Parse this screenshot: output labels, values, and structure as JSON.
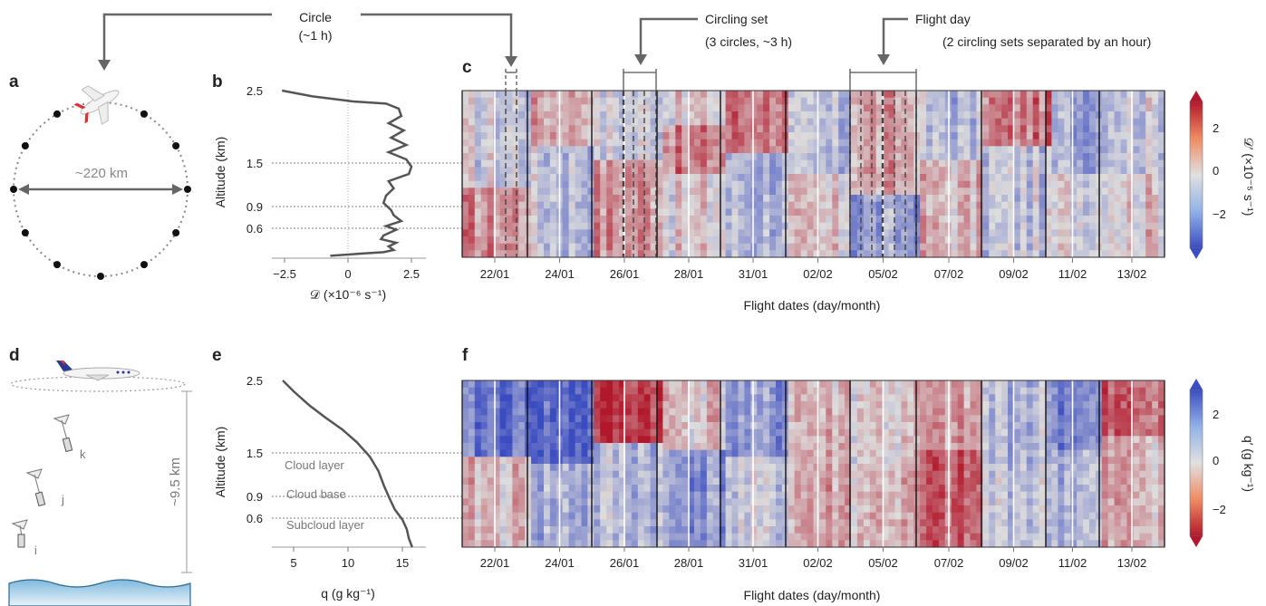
{
  "panels": {
    "a": {
      "letter": "a",
      "diameter_label": "~220 km"
    },
    "b": {
      "letter": "b"
    },
    "c": {
      "letter": "c"
    },
    "d": {
      "letter": "d",
      "height_label": "~9.5 km",
      "sondes": [
        "k",
        "j",
        "i"
      ]
    },
    "e": {
      "letter": "e",
      "layers": [
        "Cloud layer",
        "Cloud base",
        "Subcloud layer"
      ]
    },
    "f": {
      "letter": "f"
    }
  },
  "annotations": {
    "circle": "Circle",
    "circle_dur": "(~1 h)",
    "circling_set": "Circling set",
    "circling_set_dur": "(3 circles, ~3 h)",
    "flight_day": "Flight day",
    "flight_day_dur": "(2 circling sets separated by an hour)"
  },
  "axes": {
    "altitude_label": "Altitude (km)",
    "altitude_ticks": [
      "2.5",
      "1.5",
      "0.9",
      "0.6"
    ],
    "flight_dates_label": "Flight dates (day/month)",
    "dates": [
      "22/01",
      "24/01",
      "26/01",
      "28/01",
      "31/01",
      "02/02",
      "05/02",
      "07/02",
      "09/02",
      "11/02",
      "13/02"
    ],
    "b_xlabel": "𝒟 (×10⁻⁶ s⁻¹)",
    "b_xticks": [
      "−2.5",
      "0",
      "2.5"
    ],
    "e_xlabel": "q (g kg⁻¹)",
    "e_xticks": [
      "5",
      "10",
      "15"
    ],
    "cbar_top_label": "𝒟′ (×10⁻⁵ s⁻¹)",
    "cbar_top_ticks": [
      "2",
      "0",
      "−2"
    ],
    "cbar_bottom_label": "q′ (g kg⁻¹)",
    "cbar_bottom_ticks": [
      "2",
      "0",
      "−2"
    ]
  },
  "colors": {
    "positive_top": "#c0232a",
    "negative_top": "#3b5fcf",
    "neutral": "#dcdcdc",
    "line": "#555555"
  },
  "chart_data": [
    {
      "type": "line",
      "panel": "b",
      "xlabel": "𝒟 (×10⁻⁶ s⁻¹)",
      "ylabel": "Altitude (km)",
      "xlim": [
        -3,
        3
      ],
      "ylim": [
        0.2,
        2.5
      ],
      "x": [
        -2.6,
        -1.4,
        0.2,
        1.5,
        2.0,
        2.1,
        1.6,
        2.2,
        1.7,
        2.3,
        1.6,
        2.3,
        2.5,
        2.4,
        1.6,
        1.8,
        1.5,
        1.4,
        1.7,
        1.8,
        2.1,
        1.5,
        1.9,
        1.4,
        1.3,
        1.9,
        1.6,
        1.8,
        1.4,
        0.5,
        -0.7
      ],
      "y": [
        2.5,
        2.42,
        2.35,
        2.32,
        2.25,
        2.15,
        2.05,
        1.95,
        1.85,
        1.75,
        1.65,
        1.55,
        1.45,
        1.35,
        1.25,
        1.15,
        1.05,
        0.95,
        0.85,
        0.78,
        0.7,
        0.63,
        0.58,
        0.5,
        0.45,
        0.4,
        0.35,
        0.3,
        0.27,
        0.25,
        0.22
      ]
    },
    {
      "type": "line",
      "panel": "e",
      "xlabel": "q (g kg⁻¹)",
      "ylabel": "Altitude (km)",
      "xlim": [
        3,
        17
      ],
      "ylim": [
        0.2,
        2.5
      ],
      "x": [
        4.0,
        5.0,
        6.5,
        8.0,
        9.5,
        10.8,
        12.0,
        12.8,
        13.3,
        13.8,
        14.3,
        15.0,
        15.4,
        15.6,
        15.9
      ],
      "y": [
        2.5,
        2.35,
        2.15,
        1.98,
        1.82,
        1.65,
        1.45,
        1.25,
        1.05,
        0.88,
        0.72,
        0.58,
        0.45,
        0.32,
        0.2
      ]
    },
    {
      "type": "heatmap",
      "panel": "c",
      "variable": "𝒟′",
      "colorbar_range": [
        -3.5,
        3.5
      ],
      "categories": [
        "22/01",
        "24/01",
        "26/01",
        "28/01",
        "31/01",
        "02/02",
        "05/02",
        "07/02",
        "09/02",
        "11/02",
        "13/02"
      ]
    },
    {
      "type": "heatmap",
      "panel": "f",
      "variable": "q′",
      "colorbar_range": [
        -3,
        3
      ],
      "categories": [
        "22/01",
        "24/01",
        "26/01",
        "28/01",
        "31/01",
        "02/02",
        "05/02",
        "07/02",
        "09/02",
        "11/02",
        "13/02"
      ]
    }
  ]
}
